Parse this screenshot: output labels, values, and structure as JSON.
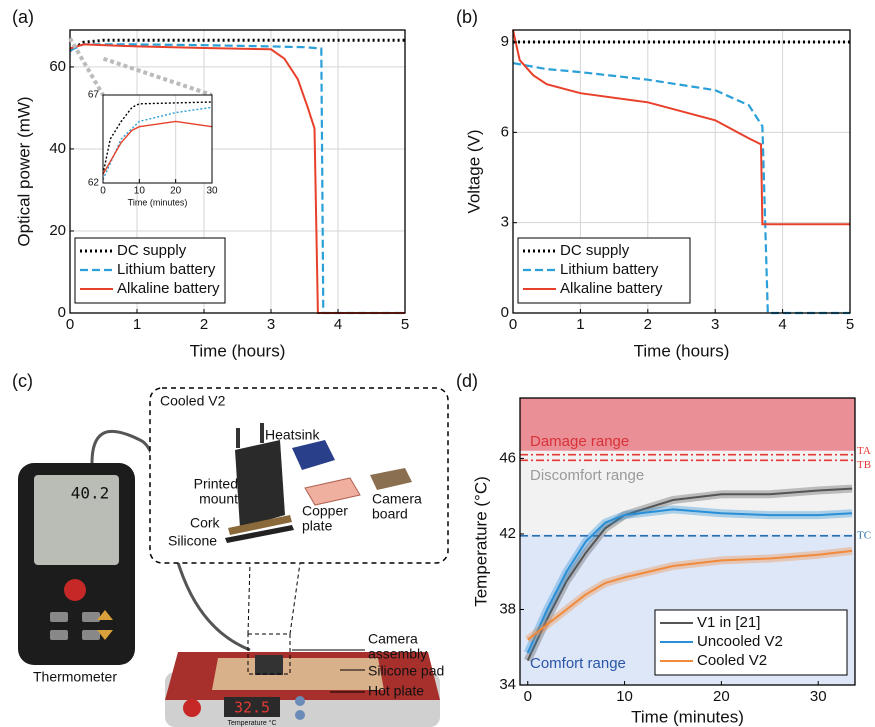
{
  "chart_data": [
    {
      "type": "line",
      "panel_label": "(a)",
      "xlabel": "Time (hours)",
      "ylabel": "Optical power (mW)",
      "xlim": [
        0,
        5
      ],
      "ylim": [
        0,
        69
      ],
      "xticks": [
        0,
        1,
        2,
        3,
        4,
        5
      ],
      "yticks": [
        0,
        20,
        40,
        60
      ],
      "grid": true,
      "legend": "lower left",
      "series": [
        {
          "name": "DC supply",
          "color": "#000000",
          "dash": "dotted",
          "x": [
            0,
            0.2,
            0.5,
            5
          ],
          "values": [
            64,
            66,
            66.5,
            66.5
          ]
        },
        {
          "name": "Lithium battery",
          "color": "#2a9fd8",
          "dash": "dashed",
          "x": [
            0,
            0.2,
            1,
            2,
            3,
            3.5,
            3.75,
            3.78,
            5
          ],
          "values": [
            64,
            65.5,
            65.5,
            65.3,
            65,
            64.8,
            64.5,
            0,
            0
          ]
        },
        {
          "name": "Alkaline battery",
          "color": "#e8402a",
          "dash": "solid",
          "x": [
            0,
            0.2,
            1,
            2,
            3,
            3.2,
            3.4,
            3.55,
            3.65,
            3.7,
            5
          ],
          "values": [
            64.5,
            65.5,
            65,
            64.6,
            64.3,
            62,
            57,
            50,
            45,
            0,
            0
          ]
        }
      ],
      "inset": {
        "type": "line",
        "xlabel": "Time (minutes)",
        "xlim": [
          0,
          30
        ],
        "ylim": [
          62,
          67
        ],
        "xticks": [
          0,
          10,
          20,
          30
        ],
        "yticks": [
          62,
          67
        ],
        "grid": true,
        "series": [
          {
            "color": "#000000",
            "dash": "dotted",
            "x": [
              0,
              2,
              5,
              8,
              10,
              30
            ],
            "values": [
              62.5,
              64.5,
              65.5,
              66.3,
              66.5,
              66.6
            ]
          },
          {
            "color": "#2a9fd8",
            "dash": "dashed",
            "x": [
              0,
              5,
              10,
              20,
              30
            ],
            "values": [
              62.2,
              64.5,
              65.5,
              66,
              66.3
            ]
          },
          {
            "color": "#e8402a",
            "dash": "solid",
            "x": [
              0,
              5,
              8,
              10,
              20,
              30
            ],
            "values": [
              62.5,
              64.3,
              65,
              65.2,
              65.5,
              65.2
            ]
          }
        ]
      }
    },
    {
      "type": "line",
      "panel_label": "(b)",
      "xlabel": "Time (hours)",
      "ylabel": "Voltage (V)",
      "xlim": [
        0,
        5
      ],
      "ylim": [
        0,
        9.4
      ],
      "xticks": [
        0,
        1,
        2,
        3,
        4,
        5
      ],
      "yticks": [
        0,
        3,
        6,
        9
      ],
      "grid": true,
      "legend": "lower left",
      "series": [
        {
          "name": "DC supply",
          "color": "#000000",
          "dash": "dotted",
          "x": [
            0,
            5
          ],
          "values": [
            9,
            9
          ]
        },
        {
          "name": "Lithium battery",
          "color": "#2a9fd8",
          "dash": "dashed",
          "x": [
            0,
            0.5,
            1,
            2,
            3,
            3.5,
            3.7,
            3.78,
            5
          ],
          "values": [
            8.3,
            8.1,
            8,
            7.75,
            7.4,
            6.9,
            6.2,
            0,
            0
          ]
        },
        {
          "name": "Alkaline battery",
          "color": "#e8402a",
          "dash": "solid",
          "x": [
            0,
            0.1,
            0.3,
            0.5,
            1,
            2,
            3,
            3.5,
            3.68,
            3.7,
            5
          ],
          "values": [
            9.4,
            8.4,
            7.9,
            7.6,
            7.3,
            7,
            6.4,
            5.8,
            5.6,
            2.95,
            2.95
          ]
        }
      ]
    },
    {
      "type": "line",
      "panel_label": "(d)",
      "xlabel": "Time (minutes)",
      "ylabel": "Temperature (°C)",
      "xlim": [
        -0.8,
        33.8
      ],
      "ylim": [
        34,
        49.2
      ],
      "xticks": [
        0,
        10,
        20,
        30
      ],
      "yticks": [
        34,
        38,
        42,
        46
      ],
      "grid": false,
      "legend": "lower right",
      "bands": [
        {
          "label": "Damage range",
          "from": 46.4,
          "to": 49.2,
          "color": "#eb8f96",
          "label_color": "#d8323a"
        },
        {
          "label": "Discomfort range",
          "from": 42,
          "to": 46.4,
          "color": "#f2f2f2",
          "label_color": "#9a9a9a"
        },
        {
          "label": "Comfort range",
          "from": 34,
          "to": 42,
          "color": "#dde7f8",
          "label_color": "#2a55a8"
        }
      ],
      "hlines": [
        {
          "label": "TA",
          "value": 46.2,
          "color": "#e53935",
          "dash": "dashdot"
        },
        {
          "label": "TB",
          "value": 45.9,
          "color": "#e53935",
          "dash": "dashdot"
        },
        {
          "label": "TC",
          "value": 41.9,
          "color": "#2a6fb0",
          "dash": "dashed"
        }
      ],
      "series": [
        {
          "name": "V1 in [21]",
          "color": "#555555",
          "dash": "solid",
          "x": [
            0,
            2,
            4,
            6,
            8,
            10,
            15,
            20,
            25,
            30,
            33.5
          ],
          "values": [
            35.3,
            37.5,
            39.5,
            41,
            42.3,
            43,
            43.8,
            44.1,
            44.1,
            44.3,
            44.4
          ]
        },
        {
          "name": "Uncooled V2",
          "color": "#2a8fd6",
          "dash": "solid",
          "x": [
            0,
            2,
            4,
            6,
            8,
            10,
            15,
            20,
            25,
            30,
            33.5
          ],
          "values": [
            35.7,
            38,
            40,
            41.6,
            42.6,
            43,
            43.3,
            43.1,
            43,
            43,
            43.1
          ]
        },
        {
          "name": "Cooled V2",
          "color": "#f08a3c",
          "dash": "solid",
          "x": [
            0,
            2,
            4,
            6,
            8,
            10,
            15,
            20,
            25,
            30,
            33.5
          ],
          "values": [
            36.4,
            37.2,
            38,
            38.8,
            39.4,
            39.7,
            40.3,
            40.6,
            40.7,
            40.9,
            41.1
          ]
        }
      ]
    }
  ],
  "illustration": {
    "panel_label": "(c)",
    "title": "Cooled V2",
    "heatsink": "Heatsink",
    "printed_mount": [
      "Printed",
      "mount"
    ],
    "cork": "Cork",
    "silicone": "Silicone",
    "copper_plate": [
      "Copper",
      "plate"
    ],
    "camera_board": [
      "Camera",
      "board"
    ],
    "camera_assembly": [
      "Camera",
      "assembly"
    ],
    "silicone_pad": "Silicone pad",
    "hot_plate": "Hot plate",
    "thermometer": "Thermometer",
    "thermometer_reading": "40.2",
    "hot_plate_reading": "32.5",
    "hot_plate_unit": "Temperature °C"
  }
}
